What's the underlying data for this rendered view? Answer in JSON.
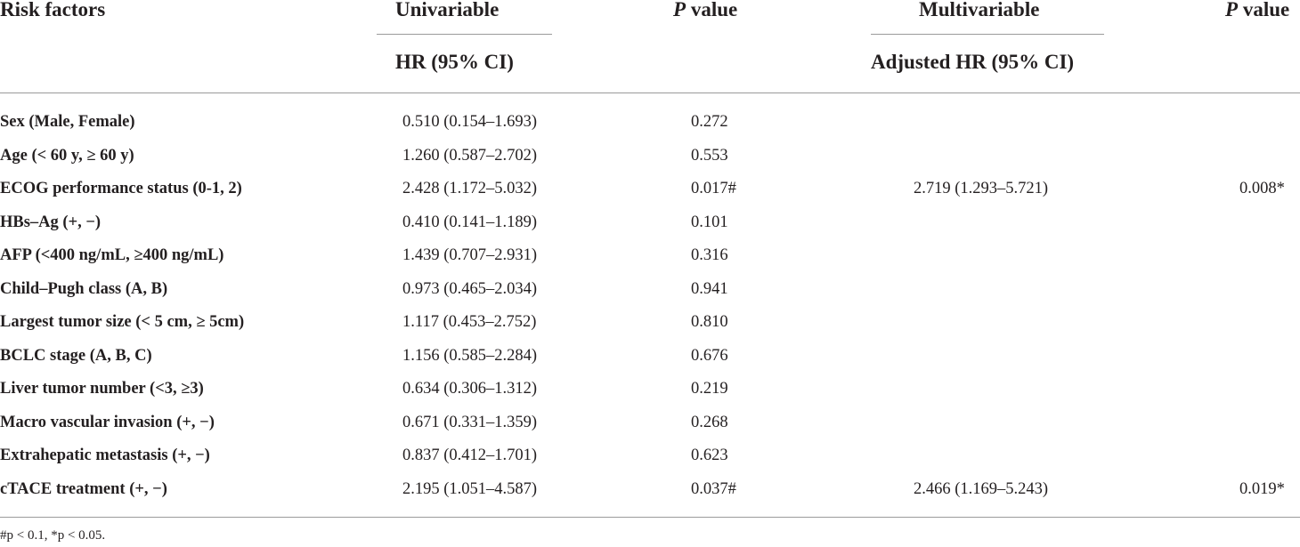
{
  "table": {
    "headers": {
      "risk_factors": "Risk factors",
      "univariable": "Univariable",
      "univariable_sub": "HR (95% CI)",
      "p_value_1_italic": "P",
      "p_value_1_rest": " value",
      "multivariable": "Multivariable",
      "multivariable_sub": "Adjusted HR (95% CI)",
      "p_value_2_italic": "P",
      "p_value_2_rest": " value"
    },
    "rows": [
      {
        "factor": "Sex (Male, Female)",
        "hr": "0.510 (0.154–1.693)",
        "p": "0.272",
        "adj_hr": "",
        "adj_p": ""
      },
      {
        "factor": "Age (< 60 y, ≥ 60 y)",
        "hr": "1.260 (0.587–2.702)",
        "p": "0.553",
        "adj_hr": "",
        "adj_p": ""
      },
      {
        "factor": "ECOG performance status (0-1, 2)",
        "hr": "2.428 (1.172–5.032)",
        "p": "0.017#",
        "adj_hr": "2.719 (1.293–5.721)",
        "adj_p": "0.008*"
      },
      {
        "factor": "HBs–Ag (+, −)",
        "hr": "0.410 (0.141–1.189)",
        "p": "0.101",
        "adj_hr": "",
        "adj_p": ""
      },
      {
        "factor": "AFP (<400 ng/mL, ≥400 ng/mL)",
        "hr": "1.439 (0.707–2.931)",
        "p": "0.316",
        "adj_hr": "",
        "adj_p": ""
      },
      {
        "factor": "Child–Pugh class (A, B)",
        "hr": "0.973 (0.465–2.034)",
        "p": "0.941",
        "adj_hr": "",
        "adj_p": ""
      },
      {
        "factor": "Largest tumor size (< 5 cm, ≥ 5cm)",
        "hr": "1.117 (0.453–2.752)",
        "p": "0.810",
        "adj_hr": "",
        "adj_p": ""
      },
      {
        "factor": "BCLC stage (A, B, C)",
        "hr": "1.156 (0.585–2.284)",
        "p": "0.676",
        "adj_hr": "",
        "adj_p": ""
      },
      {
        "factor": "Liver tumor number (<3, ≥3)",
        "hr": "0.634 (0.306–1.312)",
        "p": "0.219",
        "adj_hr": "",
        "adj_p": ""
      },
      {
        "factor": "Macro vascular invasion (+, −)",
        "hr": "0.671 (0.331–1.359)",
        "p": "0.268",
        "adj_hr": "",
        "adj_p": ""
      },
      {
        "factor": "Extrahepatic metastasis (+, −)",
        "hr": "0.837 (0.412–1.701)",
        "p": "0.623",
        "adj_hr": "",
        "adj_p": ""
      },
      {
        "factor": "cTACE treatment (+, −)",
        "hr": "2.195 (1.051–4.587)",
        "p": "0.037#",
        "adj_hr": "2.466 (1.169–5.243)",
        "adj_p": "0.019*"
      }
    ],
    "footnote": "#p < 0.1, *p < 0.05."
  }
}
